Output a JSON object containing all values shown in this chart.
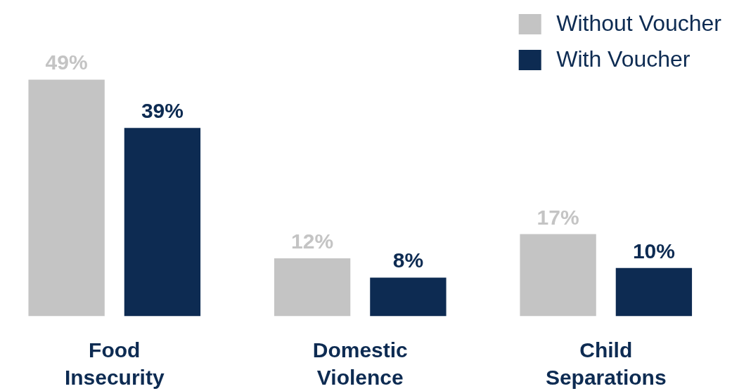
{
  "chart_data": {
    "type": "bar",
    "categories": [
      "Food Insecurity",
      "Domestic Violence",
      "Child Separations"
    ],
    "series": [
      {
        "name": "Without Voucher",
        "color": "#c4c4c4",
        "values": [
          49,
          12,
          17
        ],
        "value_labels": [
          "49%",
          "12%",
          "17%"
        ]
      },
      {
        "name": "With Voucher",
        "color": "#0d2b52",
        "values": [
          39,
          8,
          10
        ],
        "value_labels": [
          "39%",
          "8%",
          "10%"
        ]
      }
    ],
    "legend": "top right",
    "grid": false
  }
}
